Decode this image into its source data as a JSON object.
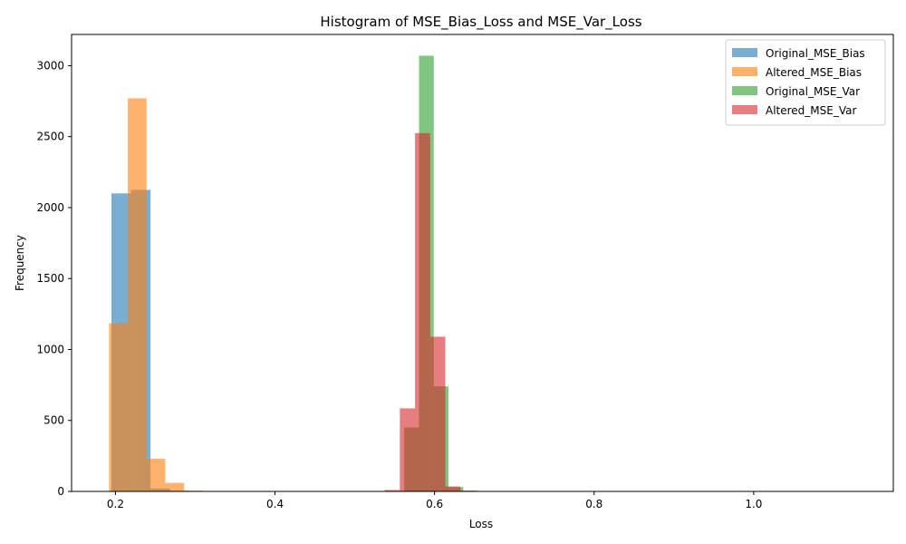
{
  "chart_data": {
    "type": "bar",
    "title": "Histogram of MSE_Bias_Loss and MSE_Var_Loss",
    "xlabel": "Loss",
    "ylabel": "Frequency",
    "xlim": [
      0.145,
      1.175
    ],
    "ylim": [
      0,
      3220
    ],
    "xticks": [
      0.2,
      0.4,
      0.6,
      0.8,
      1.0
    ],
    "xtick_labels": [
      "0.2",
      "0.4",
      "0.6",
      "0.8",
      "1.0"
    ],
    "yticks": [
      0,
      500,
      1000,
      1500,
      2000,
      2500,
      3000
    ],
    "ytick_labels": [
      "0",
      "500",
      "1000",
      "1500",
      "2000",
      "2500",
      "3000"
    ],
    "grid": false,
    "legend_position": "top-right",
    "series": [
      {
        "name": "Original_MSE_Bias",
        "color": "#1f77b4",
        "opacity": 0.6,
        "bins": [
          {
            "x0": 0.195,
            "x1": 0.2195,
            "value": 2100
          },
          {
            "x0": 0.2195,
            "x1": 0.244,
            "value": 2125
          },
          {
            "x0": 0.244,
            "x1": 0.2685,
            "value": 20
          },
          {
            "x0": 0.2685,
            "x1": 0.293,
            "value": 5
          },
          {
            "x0": 0.293,
            "x1": 0.3175,
            "value": 3
          },
          {
            "x0": 0.3175,
            "x1": 0.342,
            "value": 2
          },
          {
            "x0": 0.342,
            "x1": 0.3665,
            "value": 2
          },
          {
            "x0": 0.3665,
            "x1": 0.391,
            "value": 1
          },
          {
            "x0": 0.391,
            "x1": 0.4155,
            "value": 2
          }
        ]
      },
      {
        "name": "Altered_MSE_Bias",
        "color": "#ff7f0e",
        "opacity": 0.6,
        "bins": [
          {
            "x0": 0.192,
            "x1": 0.2155,
            "value": 1185
          },
          {
            "x0": 0.2155,
            "x1": 0.239,
            "value": 2770
          },
          {
            "x0": 0.239,
            "x1": 0.2625,
            "value": 230
          },
          {
            "x0": 0.2625,
            "x1": 0.286,
            "value": 60
          },
          {
            "x0": 0.286,
            "x1": 0.3095,
            "value": 5
          },
          {
            "x0": 0.3095,
            "x1": 0.333,
            "value": 3
          },
          {
            "x0": 0.333,
            "x1": 0.3565,
            "value": 2
          },
          {
            "x0": 0.3565,
            "x1": 0.38,
            "value": 1
          },
          {
            "x0": 0.38,
            "x1": 0.4035,
            "value": 2
          },
          {
            "x0": 0.4035,
            "x1": 0.427,
            "value": 1
          },
          {
            "x0": 0.4735,
            "x1": 0.497,
            "value": 1
          },
          {
            "x0": 0.7555,
            "x1": 0.779,
            "value": 1
          },
          {
            "x0": 0.849,
            "x1": 0.8725,
            "value": 1
          },
          {
            "x0": 0.9665,
            "x1": 0.99,
            "value": 1
          },
          {
            "x0": 1.084,
            "x1": 1.1075,
            "value": 1
          },
          {
            "x0": 1.1075,
            "x1": 1.131,
            "value": 1
          },
          {
            "x0": 1.131,
            "x1": 1.1545,
            "value": 1
          }
        ]
      },
      {
        "name": "Original_MSE_Var",
        "color": "#2ca02c",
        "opacity": 0.6,
        "bins": [
          {
            "x0": 0.562,
            "x1": 0.5805,
            "value": 450
          },
          {
            "x0": 0.5805,
            "x1": 0.599,
            "value": 3070
          },
          {
            "x0": 0.599,
            "x1": 0.6175,
            "value": 740
          },
          {
            "x0": 0.6175,
            "x1": 0.636,
            "value": 30
          },
          {
            "x0": 0.636,
            "x1": 0.6545,
            "value": 5
          },
          {
            "x0": 0.6545,
            "x1": 0.673,
            "value": 2
          },
          {
            "x0": 0.6915,
            "x1": 0.71,
            "value": 2
          },
          {
            "x0": 0.71,
            "x1": 0.7285,
            "value": 1
          },
          {
            "x0": 0.784,
            "x1": 0.8025,
            "value": 1
          },
          {
            "x0": 0.8395,
            "x1": 0.858,
            "value": 1
          },
          {
            "x0": 0.9135,
            "x1": 0.932,
            "value": 1
          }
        ]
      },
      {
        "name": "Altered_MSE_Var",
        "color": "#d62728",
        "opacity": 0.6,
        "bins": [
          {
            "x0": 0.5375,
            "x1": 0.5565,
            "value": 10
          },
          {
            "x0": 0.5565,
            "x1": 0.5755,
            "value": 585
          },
          {
            "x0": 0.5755,
            "x1": 0.5945,
            "value": 2525
          },
          {
            "x0": 0.5945,
            "x1": 0.6135,
            "value": 1090
          },
          {
            "x0": 0.6135,
            "x1": 0.6325,
            "value": 35
          },
          {
            "x0": 0.6325,
            "x1": 0.6515,
            "value": 5
          },
          {
            "x0": 0.6515,
            "x1": 0.6705,
            "value": 2
          },
          {
            "x0": 0.7465,
            "x1": 0.7655,
            "value": 1
          },
          {
            "x0": 0.8035,
            "x1": 0.8225,
            "value": 1
          },
          {
            "x0": 0.8985,
            "x1": 0.9175,
            "value": 1
          },
          {
            "x0": 0.9175,
            "x1": 0.9365,
            "value": 1
          },
          {
            "x0": 1.0125,
            "x1": 1.0315,
            "value": 1
          },
          {
            "x0": 1.0315,
            "x1": 1.0505,
            "value": 1
          }
        ]
      }
    ]
  }
}
